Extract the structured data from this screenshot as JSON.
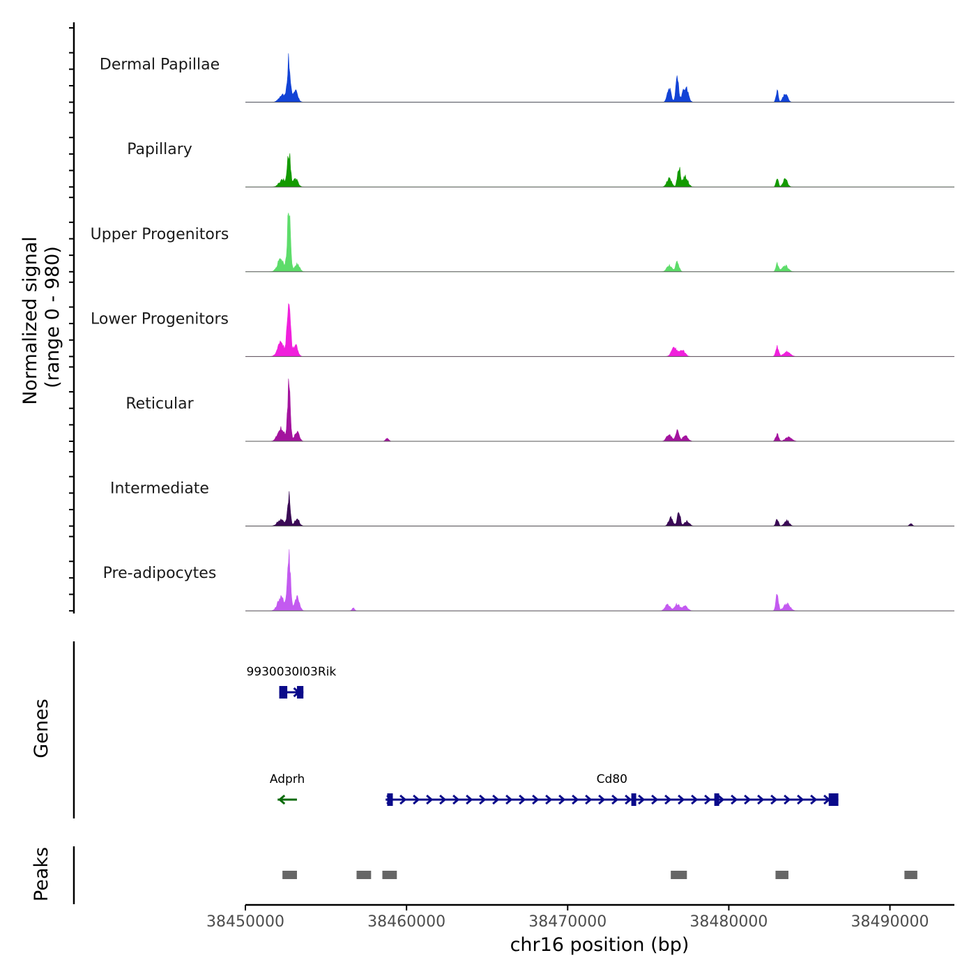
{
  "chart_data": {
    "type": "area",
    "title": "",
    "xlabel": "chr16 position (bp)",
    "xlim": [
      38450000,
      38494000
    ],
    "x_ticks": [
      38450000,
      38460000,
      38470000,
      38480000,
      38490000
    ],
    "x_tick_labels": [
      "38450000",
      "38460000",
      "38470000",
      "38480000",
      "38490000"
    ],
    "signal_panel": {
      "ylabel_line1": "Normalized signal",
      "ylabel_line2": "(range 0 - 980)",
      "ylim": [
        0,
        980
      ],
      "tracks": [
        {
          "name": "Dermal Papillae",
          "color": "#1243d6",
          "peaks": [
            {
              "x": 38452700,
              "h": 640,
              "w": 90
            },
            {
              "x": 38452300,
              "h": 120,
              "w": 200
            },
            {
              "x": 38453100,
              "h": 160,
              "w": 150
            },
            {
              "x": 38476800,
              "h": 330,
              "w": 90
            },
            {
              "x": 38476300,
              "h": 200,
              "w": 120
            },
            {
              "x": 38477300,
              "h": 240,
              "w": 160
            },
            {
              "x": 38483000,
              "h": 170,
              "w": 70
            },
            {
              "x": 38483500,
              "h": 130,
              "w": 140
            }
          ]
        },
        {
          "name": "Papillary",
          "color": "#139a00",
          "peaks": [
            {
              "x": 38452700,
              "h": 520,
              "w": 90
            },
            {
              "x": 38452300,
              "h": 110,
              "w": 200
            },
            {
              "x": 38453100,
              "h": 130,
              "w": 150
            },
            {
              "x": 38476900,
              "h": 290,
              "w": 90
            },
            {
              "x": 38476300,
              "h": 130,
              "w": 140
            },
            {
              "x": 38477300,
              "h": 150,
              "w": 160
            },
            {
              "x": 38483000,
              "h": 140,
              "w": 70
            },
            {
              "x": 38483500,
              "h": 110,
              "w": 140
            }
          ]
        },
        {
          "name": "Upper Progenitors",
          "color": "#5ddc6a",
          "peaks": [
            {
              "x": 38452700,
              "h": 900,
              "w": 95
            },
            {
              "x": 38452200,
              "h": 190,
              "w": 200
            },
            {
              "x": 38453200,
              "h": 120,
              "w": 150
            },
            {
              "x": 38476800,
              "h": 140,
              "w": 110
            },
            {
              "x": 38476300,
              "h": 90,
              "w": 150
            },
            {
              "x": 38483000,
              "h": 130,
              "w": 80
            },
            {
              "x": 38483500,
              "h": 90,
              "w": 180
            }
          ]
        },
        {
          "name": "Lower Progenitors",
          "color": "#f020dc",
          "peaks": [
            {
              "x": 38452700,
              "h": 970,
              "w": 95
            },
            {
              "x": 38452200,
              "h": 220,
              "w": 200
            },
            {
              "x": 38453100,
              "h": 170,
              "w": 140
            },
            {
              "x": 38476600,
              "h": 140,
              "w": 160
            },
            {
              "x": 38477100,
              "h": 90,
              "w": 180
            },
            {
              "x": 38483000,
              "h": 150,
              "w": 90
            },
            {
              "x": 38483600,
              "h": 70,
              "w": 200
            }
          ]
        },
        {
          "name": "Reticular",
          "color": "#a3139e",
          "peaks": [
            {
              "x": 38452700,
              "h": 790,
              "w": 90
            },
            {
              "x": 38452200,
              "h": 200,
              "w": 200
            },
            {
              "x": 38453200,
              "h": 140,
              "w": 140
            },
            {
              "x": 38458800,
              "h": 40,
              "w": 100
            },
            {
              "x": 38476800,
              "h": 170,
              "w": 100
            },
            {
              "x": 38476300,
              "h": 110,
              "w": 150
            },
            {
              "x": 38477300,
              "h": 90,
              "w": 160
            },
            {
              "x": 38483000,
              "h": 110,
              "w": 90
            },
            {
              "x": 38483700,
              "h": 60,
              "w": 200
            }
          ]
        },
        {
          "name": "Intermediate",
          "color": "#3a0a55",
          "peaks": [
            {
              "x": 38452700,
              "h": 460,
              "w": 90
            },
            {
              "x": 38452200,
              "h": 100,
              "w": 200
            },
            {
              "x": 38453200,
              "h": 110,
              "w": 140
            },
            {
              "x": 38476900,
              "h": 230,
              "w": 90
            },
            {
              "x": 38476400,
              "h": 120,
              "w": 130
            },
            {
              "x": 38477400,
              "h": 70,
              "w": 150
            },
            {
              "x": 38483000,
              "h": 110,
              "w": 80
            },
            {
              "x": 38483600,
              "h": 80,
              "w": 150
            },
            {
              "x": 38491300,
              "h": 35,
              "w": 90
            }
          ]
        },
        {
          "name": "Pre-adipocytes",
          "color": "#c35af0",
          "peaks": [
            {
              "x": 38452700,
              "h": 860,
              "w": 95
            },
            {
              "x": 38452200,
              "h": 200,
              "w": 200
            },
            {
              "x": 38453200,
              "h": 210,
              "w": 150
            },
            {
              "x": 38456700,
              "h": 40,
              "w": 80
            },
            {
              "x": 38476800,
              "h": 100,
              "w": 150
            },
            {
              "x": 38476200,
              "h": 90,
              "w": 150
            },
            {
              "x": 38477300,
              "h": 70,
              "w": 150
            },
            {
              "x": 38483000,
              "h": 250,
              "w": 80
            },
            {
              "x": 38483600,
              "h": 100,
              "w": 200
            }
          ]
        }
      ]
    },
    "genes_panel": {
      "label": "Genes",
      "genes": [
        {
          "name": "9930030I03Rik",
          "start": 38452100,
          "end": 38453600,
          "strand": "+",
          "color": "#0a0a8a",
          "row": 1,
          "exons": [
            [
              38452100,
              38452600
            ],
            [
              38453200,
              38453600
            ]
          ]
        },
        {
          "name": "Adprh",
          "start": 38452000,
          "end": 38453200,
          "strand": "-",
          "color": "#0a6a0a",
          "row": 2,
          "exons": []
        },
        {
          "name": "Cd80",
          "start": 38458700,
          "end": 38486800,
          "strand": "+",
          "color": "#0a0a8a",
          "row": 2,
          "exons": [
            [
              38458800,
              38459150
            ],
            [
              38473950,
              38474200
            ],
            [
              38479100,
              38479350
            ],
            [
              38486200,
              38486800
            ]
          ]
        }
      ]
    },
    "peaks_panel": {
      "label": "Peaks",
      "color": "#666666",
      "regions": [
        [
          38452300,
          38453200
        ],
        [
          38456900,
          38457800
        ],
        [
          38458500,
          38459400
        ],
        [
          38476400,
          38477400
        ],
        [
          38482900,
          38483700
        ],
        [
          38490900,
          38491700
        ]
      ]
    }
  }
}
